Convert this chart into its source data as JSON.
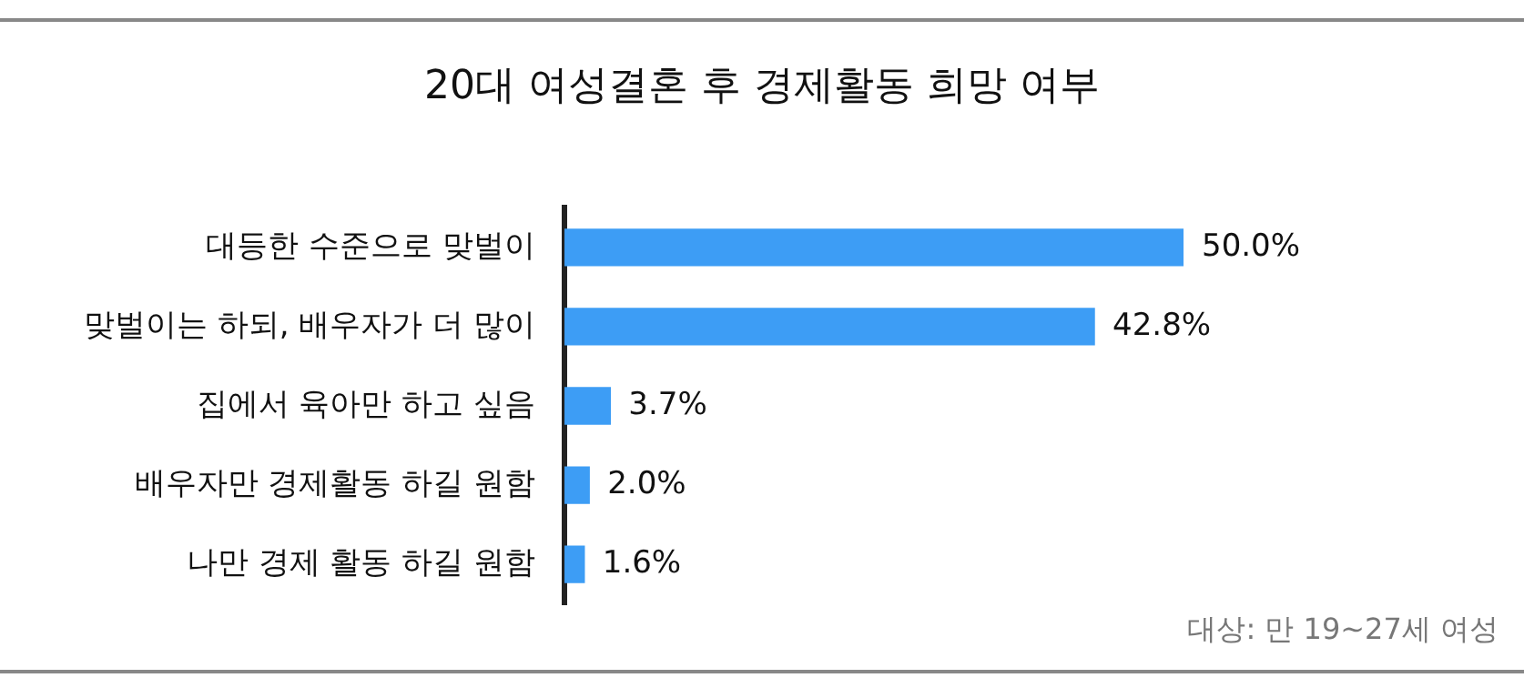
{
  "chart_data": {
    "type": "bar",
    "orientation": "horizontal",
    "title": "20대 여성결혼 후 경제활동 희망 여부",
    "categories": [
      "대등한 수준으로 맞벌이",
      "맞벌이는 하되, 배우자가 더 많이",
      "집에서 육아만 하고 싶음",
      "배우자만 경제활동 하길 원함",
      "나만 경제 활동 하길 원함"
    ],
    "values": [
      50.0,
      42.8,
      3.7,
      2.0,
      1.6
    ],
    "value_labels": [
      "50.0%",
      "42.8%",
      "3.7%",
      "2.0%",
      "1.6%"
    ],
    "color": "#3d9df5",
    "grid": false,
    "legend": false,
    "tick_labels": "y",
    "annotations": [
      "대상: 만 19~27세 여성"
    ]
  }
}
